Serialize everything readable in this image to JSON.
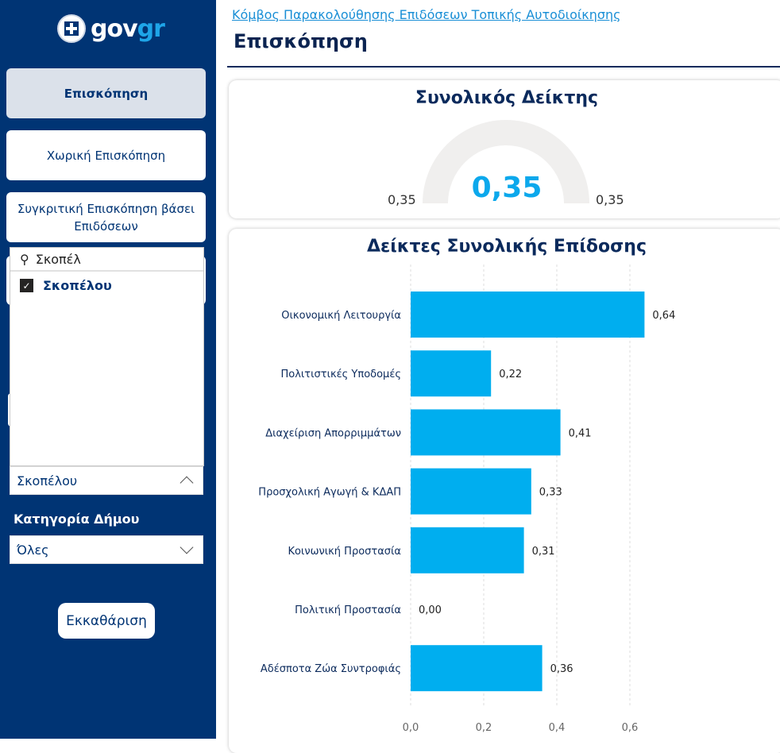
{
  "sidebar": {
    "logo": {
      "text_main": "gov",
      "text_accent": "gr"
    },
    "nav": [
      {
        "label": "Επισκόπηση"
      },
      {
        "label": "Χωρική Επισκόπηση"
      },
      {
        "label": "Συγκριτική Επισκόπηση βάσει Επιδόσεων"
      }
    ],
    "municipality_filter": {
      "search_value": "Σκοπέλ",
      "options": [
        {
          "label": "Σκοπέλου",
          "checked": true
        }
      ],
      "selected": "Σκοπέλου"
    },
    "category_filter": {
      "label": "Κατηγορία Δήμου",
      "selected": "Όλες"
    },
    "clear_label": "Εκκαθάριση"
  },
  "header": {
    "link": "Κόμβος Παρακολούθησης Επιδόσεων Τοπικής Αυτοδιοίκησης",
    "title": "Επισκόπηση"
  },
  "gauge": {
    "title": "Συνολικός Δείκτης",
    "value": "0,35",
    "min": "0,35",
    "max": "0,35"
  },
  "colors": {
    "sidebar": "#003474",
    "bar": "#00aeef",
    "accent": "#1ea5e8"
  },
  "chart_data": {
    "type": "bar",
    "orientation": "horizontal",
    "title": "Δείκτες Συνολικής Επίδοσης",
    "categories": [
      "Οικονομική Λειτουργία",
      "Πολιτιστικές Υποδομές",
      "Διαχείριση Απορριμμάτων",
      "Προσχολική Αγωγή & ΚΔΑΠ",
      "Κοινωνική Προστασία",
      "Πολιτική Προστασία",
      "Αδέσποτα Ζώα Συντροφιάς"
    ],
    "values": [
      0.64,
      0.22,
      0.41,
      0.33,
      0.31,
      0.0,
      0.36
    ],
    "value_labels": [
      "0,64",
      "0,22",
      "0,41",
      "0,33",
      "0,31",
      "0,00",
      "0,36"
    ],
    "xticks": [
      0,
      0.2,
      0.4,
      0.6
    ],
    "xtick_labels": [
      "0,0",
      "0,2",
      "0,4",
      "0,6"
    ],
    "xlim": [
      0,
      0.6
    ],
    "grid": true
  }
}
